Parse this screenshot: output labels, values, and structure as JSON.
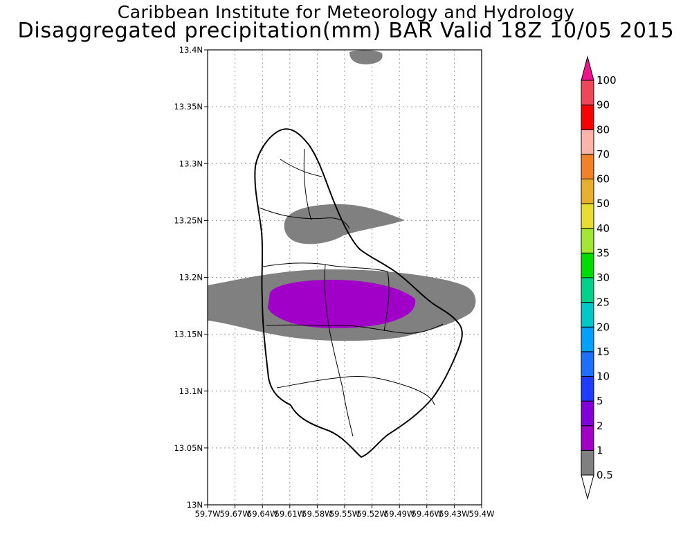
{
  "title": {
    "line1": "Caribbean Institute for Meteorology and Hydrology",
    "line2": "Disaggregated precipitation(mm) BAR Valid 18Z 10/05 2015"
  },
  "axes": {
    "lat_ticks": [
      "13.4N",
      "13.35N",
      "13.3N",
      "13.25N",
      "13.2N",
      "13.15N",
      "13.1N",
      "13.05N",
      "13N"
    ],
    "lon_ticks": [
      "59.7W",
      "59.67W",
      "59.64W",
      "59.61W",
      "59.58W",
      "59.55W",
      "59.52W",
      "59.49W",
      "59.46W",
      "59.43W",
      "59.4W"
    ],
    "lat_range": [
      13.0,
      13.4
    ],
    "lon_range": [
      -59.7,
      -59.4
    ],
    "grid": true
  },
  "colorbar": {
    "labels": [
      "0.5",
      "1",
      "2",
      "5",
      "10",
      "15",
      "20",
      "25",
      "30",
      "35",
      "40",
      "50",
      "60",
      "70",
      "80",
      "90",
      "100"
    ],
    "colors": [
      "#808080",
      "#a000c8",
      "#8200dc",
      "#1e3cff",
      "#1e6eff",
      "#00a0ff",
      "#00c8c8",
      "#00d28c",
      "#00dc00",
      "#a0e632",
      "#e6dc32",
      "#e6af2d",
      "#f08228",
      "#fab4aa",
      "#fa0000",
      "#f0465a",
      "#f0148c"
    ]
  },
  "precip_areas": [
    {
      "level": "0.5-1 mm",
      "color": "#808080"
    },
    {
      "level": "1-2 mm",
      "color": "#a000c8"
    }
  ]
}
